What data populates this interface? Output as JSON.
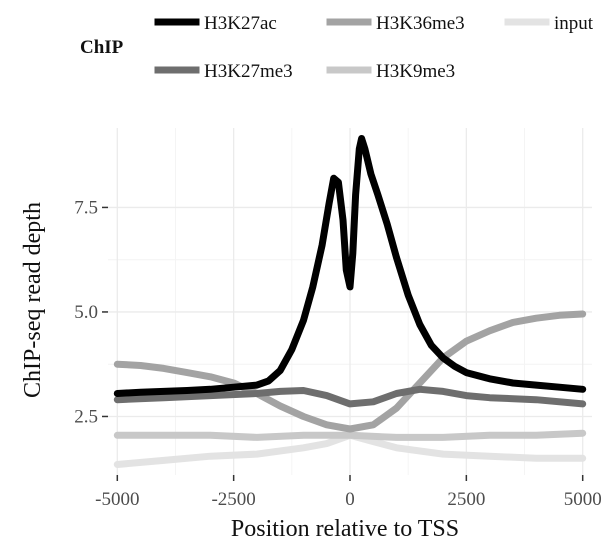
{
  "chart_data": {
    "type": "line",
    "title": "",
    "xlabel": "Position relative to TSS",
    "ylabel": "ChIP-seq read depth",
    "xlim": [
      -5200,
      5200
    ],
    "ylim": [
      1.1,
      9.4
    ],
    "xticks": [
      -5000,
      -2500,
      0,
      2500,
      5000
    ],
    "xtick_labels": [
      "-5000",
      "-2500",
      "0",
      "2500",
      "5000"
    ],
    "yticks": [
      2.5,
      5.0,
      7.5
    ],
    "ytick_labels": [
      "2.5",
      "5.0",
      "7.5"
    ],
    "grid": true,
    "legend": {
      "title": "ChIP",
      "placement": "top"
    },
    "series": [
      {
        "name": "H3K27ac",
        "color": "#000000",
        "points": [
          [
            -5000,
            3.05
          ],
          [
            -4500,
            3.08
          ],
          [
            -4000,
            3.1
          ],
          [
            -3500,
            3.12
          ],
          [
            -3000,
            3.15
          ],
          [
            -2500,
            3.2
          ],
          [
            -2000,
            3.25
          ],
          [
            -1750,
            3.35
          ],
          [
            -1500,
            3.6
          ],
          [
            -1250,
            4.1
          ],
          [
            -1000,
            4.8
          ],
          [
            -800,
            5.6
          ],
          [
            -600,
            6.6
          ],
          [
            -450,
            7.6
          ],
          [
            -350,
            8.2
          ],
          [
            -250,
            8.1
          ],
          [
            -150,
            7.2
          ],
          [
            -80,
            6.0
          ],
          [
            0,
            5.6
          ],
          [
            60,
            6.4
          ],
          [
            120,
            7.8
          ],
          [
            200,
            8.9
          ],
          [
            250,
            9.15
          ],
          [
            320,
            8.9
          ],
          [
            450,
            8.3
          ],
          [
            600,
            7.8
          ],
          [
            800,
            7.1
          ],
          [
            1000,
            6.3
          ],
          [
            1250,
            5.4
          ],
          [
            1500,
            4.7
          ],
          [
            1750,
            4.2
          ],
          [
            2000,
            3.9
          ],
          [
            2250,
            3.7
          ],
          [
            2500,
            3.55
          ],
          [
            3000,
            3.4
          ],
          [
            3500,
            3.3
          ],
          [
            4000,
            3.25
          ],
          [
            4500,
            3.2
          ],
          [
            5000,
            3.15
          ]
        ]
      },
      {
        "name": "H3K27me3",
        "color": "#6e6e6e",
        "points": [
          [
            -5000,
            2.9
          ],
          [
            -4000,
            2.95
          ],
          [
            -3000,
            3.0
          ],
          [
            -2000,
            3.05
          ],
          [
            -1500,
            3.1
          ],
          [
            -1000,
            3.12
          ],
          [
            -500,
            3.0
          ],
          [
            0,
            2.8
          ],
          [
            500,
            2.85
          ],
          [
            1000,
            3.05
          ],
          [
            1500,
            3.15
          ],
          [
            2000,
            3.1
          ],
          [
            2500,
            3.0
          ],
          [
            3000,
            2.95
          ],
          [
            4000,
            2.9
          ],
          [
            5000,
            2.8
          ]
        ]
      },
      {
        "name": "H3K36me3",
        "color": "#a3a3a3",
        "points": [
          [
            -5000,
            3.75
          ],
          [
            -4500,
            3.72
          ],
          [
            -4000,
            3.65
          ],
          [
            -3500,
            3.55
          ],
          [
            -3000,
            3.45
          ],
          [
            -2500,
            3.3
          ],
          [
            -2000,
            3.05
          ],
          [
            -1500,
            2.75
          ],
          [
            -1000,
            2.5
          ],
          [
            -500,
            2.3
          ],
          [
            0,
            2.2
          ],
          [
            500,
            2.3
          ],
          [
            1000,
            2.7
          ],
          [
            1500,
            3.3
          ],
          [
            2000,
            3.9
          ],
          [
            2500,
            4.3
          ],
          [
            3000,
            4.55
          ],
          [
            3500,
            4.75
          ],
          [
            4000,
            4.85
          ],
          [
            4500,
            4.92
          ],
          [
            5000,
            4.95
          ]
        ]
      },
      {
        "name": "H3K9me3",
        "color": "#c8c8c8",
        "points": [
          [
            -5000,
            2.05
          ],
          [
            -4000,
            2.05
          ],
          [
            -3000,
            2.05
          ],
          [
            -2000,
            2.0
          ],
          [
            -1000,
            2.05
          ],
          [
            0,
            2.05
          ],
          [
            1000,
            2.0
          ],
          [
            2000,
            2.0
          ],
          [
            3000,
            2.05
          ],
          [
            4000,
            2.05
          ],
          [
            5000,
            2.1
          ]
        ]
      },
      {
        "name": "input",
        "color": "#e3e3e3",
        "points": [
          [
            -5000,
            1.35
          ],
          [
            -4000,
            1.45
          ],
          [
            -3000,
            1.55
          ],
          [
            -2000,
            1.6
          ],
          [
            -1000,
            1.75
          ],
          [
            -500,
            1.85
          ],
          [
            0,
            2.05
          ],
          [
            500,
            1.9
          ],
          [
            1000,
            1.75
          ],
          [
            2000,
            1.6
          ],
          [
            3000,
            1.55
          ],
          [
            4000,
            1.5
          ],
          [
            5000,
            1.5
          ]
        ]
      }
    ]
  }
}
